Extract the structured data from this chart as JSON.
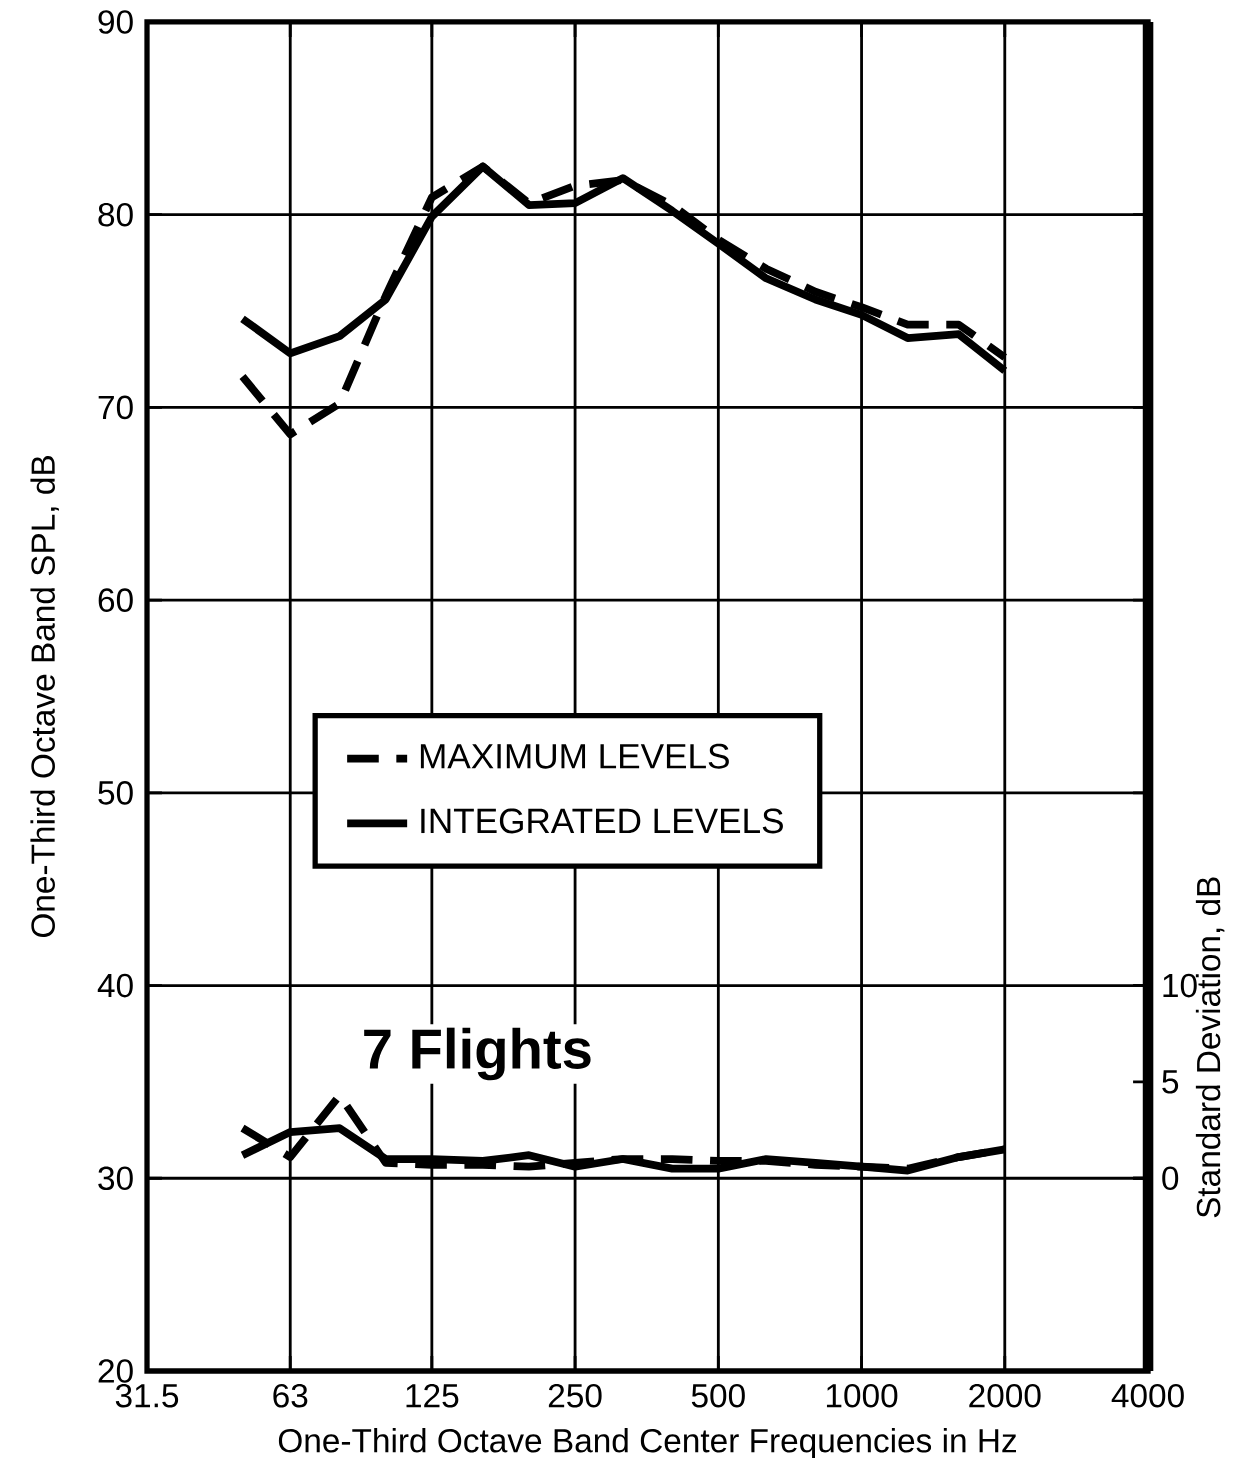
{
  "chart_data": {
    "type": "line",
    "xlabel": "One-Third Octave Band Center Frequencies in Hz",
    "ylabel": "One-Third Octave Band SPL, dB",
    "y2label": "Standard Deviation, dB",
    "x": [
      50,
      63,
      80,
      100,
      125,
      160,
      200,
      250,
      315,
      400,
      500,
      630,
      800,
      1000,
      1250,
      1600,
      2000
    ],
    "series": [
      {
        "name": "MAXIMUM LEVELS",
        "color": "#000000",
        "line_style": "dashed",
        "values": [
          71.6,
          68.6,
          70.2,
          75.8,
          80.9,
          82.5,
          80.6,
          81.5,
          81.8,
          80.5,
          78.7,
          77.2,
          76.0,
          75.2,
          74.3,
          74.3,
          72.6
        ]
      },
      {
        "name": "INTEGRATED LEVELS",
        "color": "#000000",
        "line_style": "solid",
        "values": [
          74.6,
          72.8,
          73.7,
          75.6,
          79.9,
          82.5,
          80.5,
          80.6,
          81.9,
          80.2,
          78.5,
          76.7,
          75.6,
          74.8,
          73.6,
          73.8,
          71.9
        ]
      },
      {
        "color": "#000000",
        "line_style": "dashed",
        "axis": "y2",
        "values": [
          2.6,
          1.1,
          4.3,
          0.8,
          0.7,
          0.7,
          0.6,
          0.8,
          1.0,
          1.0,
          0.9,
          0.9,
          0.7,
          0.6,
          0.5,
          1.1,
          1.5
        ]
      },
      {
        "color": "#000000",
        "line_style": "solid",
        "axis": "y2",
        "values": [
          1.2,
          2.4,
          2.6,
          1.0,
          1.0,
          0.9,
          1.2,
          0.6,
          1.0,
          0.5,
          0.5,
          1.0,
          0.8,
          0.6,
          0.4,
          1.1,
          1.5
        ]
      }
    ],
    "xlim": [
      31.5,
      4000
    ],
    "xticks": [
      31.5,
      63,
      125,
      250,
      500,
      1000,
      2000,
      4000
    ],
    "ylim": [
      20,
      90
    ],
    "yticks": [
      20,
      30,
      40,
      50,
      60,
      70,
      80,
      90
    ],
    "y2lim": [
      -10,
      60
    ],
    "y2ticks": [
      0,
      5,
      10
    ],
    "log": "x",
    "grid": true,
    "legend": "center",
    "marker": "none",
    "annotations": [
      "7 Flights"
    ]
  }
}
